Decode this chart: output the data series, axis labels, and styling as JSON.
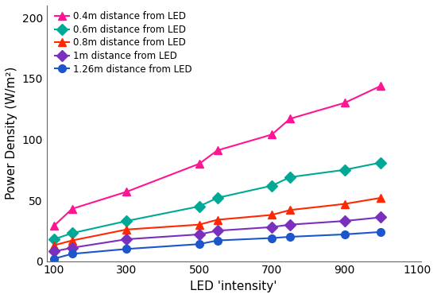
{
  "series": [
    {
      "label": "0.4m distance from LED",
      "color": "#FF1493",
      "marker": "^",
      "x": [
        100,
        150,
        300,
        500,
        550,
        700,
        750,
        900,
        1000
      ],
      "y": [
        29,
        43,
        57,
        80,
        91,
        104,
        117,
        130,
        144
      ]
    },
    {
      "label": "0.6m distance from LED",
      "color": "#00A896",
      "marker": "D",
      "x": [
        100,
        150,
        300,
        500,
        550,
        700,
        750,
        900,
        1000
      ],
      "y": [
        18,
        23,
        33,
        45,
        52,
        62,
        69,
        75,
        81
      ]
    },
    {
      "label": "0.8m distance from LED",
      "color": "#FF2800",
      "marker": "^",
      "x": [
        100,
        150,
        300,
        500,
        550,
        700,
        750,
        900,
        1000
      ],
      "y": [
        13,
        17,
        26,
        30,
        34,
        38,
        42,
        47,
        52
      ]
    },
    {
      "label": "1m distance from LED",
      "color": "#7B2FBE",
      "marker": "D",
      "x": [
        100,
        150,
        300,
        500,
        550,
        700,
        750,
        900,
        1000
      ],
      "y": [
        8,
        11,
        18,
        22,
        25,
        28,
        30,
        33,
        36
      ]
    },
    {
      "label": "1.26m distance from LED",
      "color": "#1C55CC",
      "marker": "o",
      "x": [
        100,
        150,
        300,
        500,
        550,
        700,
        750,
        900,
        1000
      ],
      "y": [
        2,
        6,
        10,
        14,
        17,
        19,
        20,
        22,
        24
      ]
    }
  ],
  "xlabel": "LED 'intensity'",
  "ylabel": "Power Density (W/m²)",
  "xlim": [
    80,
    1110
  ],
  "ylim": [
    0,
    210
  ],
  "xticks": [
    100,
    300,
    500,
    700,
    900,
    1100
  ],
  "yticks": [
    0,
    50,
    100,
    150,
    200
  ],
  "background_color": "#ffffff",
  "legend_fontsize": 8.5,
  "xlabel_fontsize": 11,
  "ylabel_fontsize": 11,
  "tick_fontsize": 10
}
